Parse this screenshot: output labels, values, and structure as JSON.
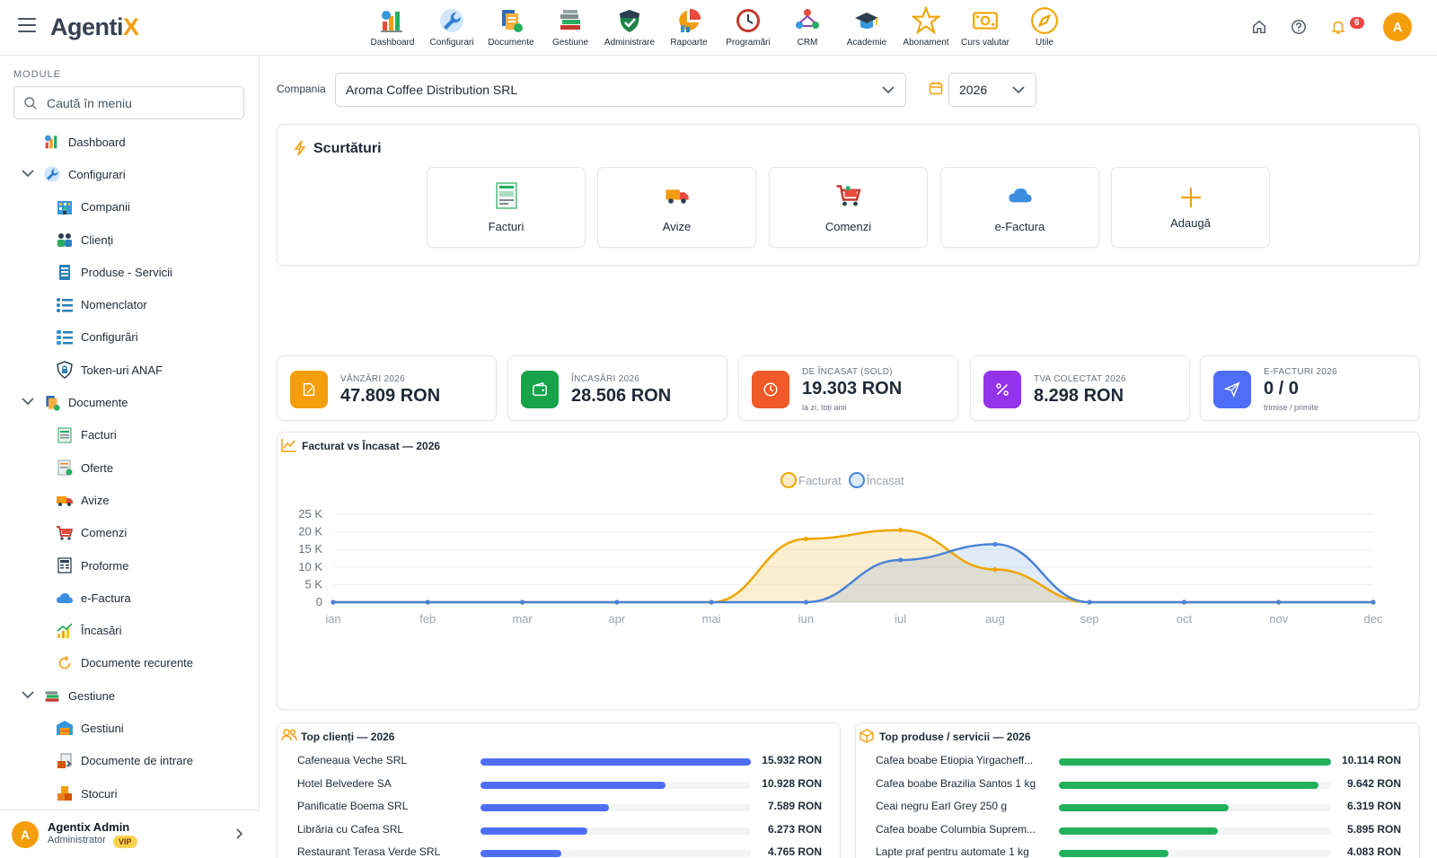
{
  "app": {
    "logo_main": "Agenti",
    "logo_accent": "X"
  },
  "topnav": [
    {
      "label": "Dashboard",
      "icon": "dashboard-icon"
    },
    {
      "label": "Configurari",
      "icon": "wrench-icon"
    },
    {
      "label": "Documente",
      "icon": "documents-icon"
    },
    {
      "label": "Gestiune",
      "icon": "books-icon"
    },
    {
      "label": "Administrare",
      "icon": "shield-icon"
    },
    {
      "label": "Rapoarte",
      "icon": "report-icon"
    },
    {
      "label": "Programări",
      "icon": "clock-icon"
    },
    {
      "label": "CRM",
      "icon": "crm-icon"
    },
    {
      "label": "Academie",
      "icon": "graduation-cap-icon"
    },
    {
      "label": "Abonament",
      "icon": "star-icon"
    },
    {
      "label": "Curs valutar",
      "icon": "money-icon"
    },
    {
      "label": "Utile",
      "icon": "compass-icon"
    }
  ],
  "header": {
    "notification_count": "6",
    "avatar_letter": "A"
  },
  "sidebar": {
    "module_label": "MODULE",
    "search_placeholder": "Caută în meniu",
    "items": [
      {
        "label": "Dashboard",
        "level": 0,
        "icon": "dashboard-icon"
      },
      {
        "label": "Configurari",
        "level": 0,
        "icon": "wrench-icon",
        "expanded": true
      },
      {
        "label": "Companii",
        "level": 1,
        "icon": "building-icon"
      },
      {
        "label": "Clienți",
        "level": 1,
        "icon": "people-icon"
      },
      {
        "label": "Produse - Servicii",
        "level": 1,
        "icon": "clipboard-icon"
      },
      {
        "label": "Nomenclator",
        "level": 1,
        "icon": "list-icon"
      },
      {
        "label": "Configurări",
        "level": 1,
        "icon": "settings-list-icon"
      },
      {
        "label": "Token-uri ANAF",
        "level": 1,
        "icon": "shield-lock-icon"
      },
      {
        "label": "Documente",
        "level": 0,
        "icon": "documents-icon",
        "expanded": true
      },
      {
        "label": "Facturi",
        "level": 1,
        "icon": "invoice-icon"
      },
      {
        "label": "Oferte",
        "level": 1,
        "icon": "offer-icon"
      },
      {
        "label": "Avize",
        "level": 1,
        "icon": "truck-icon"
      },
      {
        "label": "Comenzi",
        "level": 1,
        "icon": "cart-icon"
      },
      {
        "label": "Proforme",
        "level": 1,
        "icon": "receipt-icon"
      },
      {
        "label": "e-Factura",
        "level": 1,
        "icon": "cloud-icon"
      },
      {
        "label": "Încasări",
        "level": 1,
        "icon": "chart-up-icon"
      },
      {
        "label": "Documente recurente",
        "level": 1,
        "icon": "recurring-icon"
      },
      {
        "label": "Gestiune",
        "level": 0,
        "icon": "books-icon",
        "expanded": true
      },
      {
        "label": "Gestiuni",
        "level": 1,
        "icon": "warehouse-icon"
      },
      {
        "label": "Documente de intrare",
        "level": 1,
        "icon": "incoming-docs-icon"
      },
      {
        "label": "Stocuri",
        "level": 1,
        "icon": "boxes-icon"
      }
    ],
    "user": {
      "name": "Agentix Admin",
      "role": "Administrator",
      "badge": "VIP",
      "avatar_letter": "A"
    }
  },
  "filters": {
    "company_label": "Compania",
    "company_value": "Aroma Coffee Distribution SRL",
    "year_value": "2026"
  },
  "shortcuts": {
    "title": "Scurtături",
    "items": [
      {
        "label": "Facturi",
        "icon": "invoice-icon"
      },
      {
        "label": "Avize",
        "icon": "truck-icon"
      },
      {
        "label": "Comenzi",
        "icon": "cart-icon"
      },
      {
        "label": "e-Factura",
        "icon": "cloud-icon"
      },
      {
        "label": "Adaugă",
        "icon": "plus-icon"
      }
    ]
  },
  "stats": [
    {
      "label": "VÂNZĂRI 2026",
      "value": "47.809 RON",
      "sub": "",
      "color": "#f59e0b",
      "icon": "edit-icon"
    },
    {
      "label": "ÎNCASĂRI 2026",
      "value": "28.506 RON",
      "sub": "",
      "color": "#16a34a",
      "icon": "wallet-icon"
    },
    {
      "label": "DE ÎNCASAT (SOLD)",
      "value": "19.303 RON",
      "sub": "la zi, toți anii",
      "color": "#ef5a28",
      "icon": "clock-icon"
    },
    {
      "label": "TVA COLECTAT 2026",
      "value": "8.298 RON",
      "sub": "",
      "color": "#9333ea",
      "icon": "percent-icon"
    },
    {
      "label": "E-FACTURI 2026",
      "value": "0 / 0",
      "sub": "trimise / primite",
      "color": "#4f6ef7",
      "icon": "send-icon"
    }
  ],
  "chart_title": "Facturat vs Încasat — 2026",
  "chart_data": {
    "type": "area",
    "x": [
      "ian",
      "feb",
      "mar",
      "apr",
      "mai",
      "iun",
      "iul",
      "aug",
      "sep",
      "oct",
      "nov",
      "dec"
    ],
    "series": [
      {
        "name": "Facturat",
        "values": [
          0,
          0,
          0,
          0,
          0,
          18000,
          20500,
          9300,
          0,
          0,
          0,
          0
        ],
        "color": "#f0a500"
      },
      {
        "name": "Încasat",
        "values": [
          0,
          0,
          0,
          0,
          0,
          0,
          12000,
          16500,
          0,
          0,
          0,
          0
        ],
        "color": "#4a82d8"
      }
    ],
    "yticks": [
      "0",
      "5 K",
      "10 K",
      "15 K",
      "20 K",
      "25 K"
    ],
    "ylim": [
      0,
      25000
    ],
    "legend": "top-center",
    "grid": true
  },
  "top_clients": {
    "title": "Top clienți — 2026",
    "color": "#4f6ef7",
    "max": 15932,
    "items": [
      {
        "name": "Cafeneaua Veche SRL",
        "value": 15932,
        "label": "15.932 RON"
      },
      {
        "name": "Hotel Belvedere SA",
        "value": 10928,
        "label": "10.928 RON"
      },
      {
        "name": "Panificatie Boema SRL",
        "value": 7589,
        "label": "7.589 RON"
      },
      {
        "name": "Librăria cu Cafea SRL",
        "value": 6273,
        "label": "6.273 RON"
      },
      {
        "name": "Restaurant Terasa Verde SRL",
        "value": 4765,
        "label": "4.765 RON"
      }
    ]
  },
  "top_products": {
    "title": "Top produse / servicii — 2026",
    "color": "#22b05b",
    "max": 10114,
    "items": [
      {
        "name": "Cafea boabe Etiopia Yirgacheff...",
        "value": 10114,
        "label": "10.114 RON"
      },
      {
        "name": "Cafea boabe Brazilia Santos 1 kg",
        "value": 9642,
        "label": "9.642 RON"
      },
      {
        "name": "Ceai negru Earl Grey 250 g",
        "value": 6319,
        "label": "6.319 RON"
      },
      {
        "name": "Cafea boabe Columbia Suprem...",
        "value": 5895,
        "label": "5.895 RON"
      },
      {
        "name": "Lapte praf pentru automate 1 kg",
        "value": 4083,
        "label": "4.083 RON"
      }
    ]
  }
}
